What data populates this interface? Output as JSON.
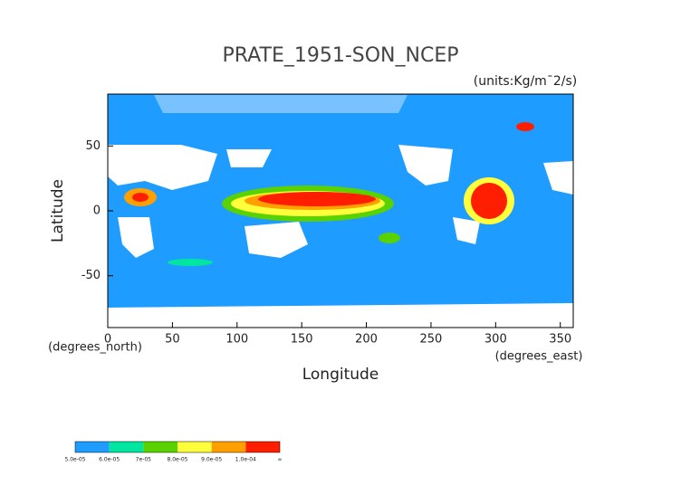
{
  "chart_data": {
    "type": "heatmap",
    "title": "PRATE_1951-SON_NCEP",
    "units": "(units:Kg/m¯2/s)",
    "x_label": "Longitude",
    "y_label": "Latitude",
    "x_unit": "(degrees_east)",
    "y_unit": "(degrees_north)",
    "xlim": [
      0,
      360
    ],
    "ylim": [
      -90,
      90
    ],
    "xticks": [
      0,
      50,
      100,
      150,
      200,
      250,
      300,
      350
    ],
    "yticks": [
      -50,
      0,
      50
    ],
    "colorbar": {
      "labels": [
        "5.0e-05",
        "6.0e-05",
        "7e-05",
        "8.0e-05",
        "9.0e-05",
        "1.0e-04",
        "∞"
      ],
      "colors": [
        "#1e9cff",
        "#00e6a0",
        "#5ad200",
        "#ffff3c",
        "#ffa000",
        "#ff1e00"
      ]
    }
  }
}
